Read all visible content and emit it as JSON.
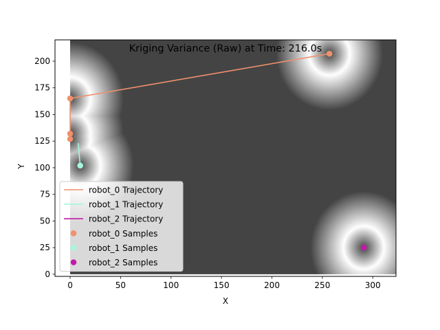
{
  "chart_data": {
    "type": "heatmap",
    "title": "Kriging Variance (Raw) at Time: 216.0s",
    "xlabel": "X",
    "ylabel": "Y",
    "xlim": [
      -15,
      323
    ],
    "ylim": [
      -2,
      220
    ],
    "grid": false,
    "xticks": [
      0,
      50,
      100,
      150,
      200,
      250,
      300
    ],
    "yticks": [
      0,
      25,
      50,
      75,
      100,
      125,
      150,
      175,
      200
    ],
    "heatmap": {
      "extent_x": [
        0,
        323
      ],
      "extent_y": [
        0,
        220
      ],
      "colormap": "gray",
      "background": "#444444",
      "sample_points": [
        {
          "x": 0,
          "y": 165
        },
        {
          "x": 0,
          "y": 132
        },
        {
          "x": 0,
          "y": 127
        },
        {
          "x": 10,
          "y": 102
        },
        {
          "x": 257,
          "y": 207
        },
        {
          "x": 291,
          "y": 25
        }
      ]
    },
    "series": [
      {
        "name": "robot_0 Trajectory",
        "kind": "line",
        "color": "#f0906c",
        "x": [
          0,
          0,
          0,
          0,
          257
        ],
        "y": [
          127,
          132,
          165,
          165,
          207
        ]
      },
      {
        "name": "robot_1 Trajectory",
        "kind": "line",
        "color": "#a8f5e0",
        "x": [
          8,
          10
        ],
        "y": [
          123,
          102
        ]
      },
      {
        "name": "robot_2 Trajectory",
        "kind": "line",
        "color": "#c21aa8",
        "x": [
          291
        ],
        "y": [
          25
        ]
      },
      {
        "name": "robot_0 Samples",
        "kind": "scatter",
        "color": "#f0906c",
        "x": [
          0,
          0,
          0,
          257
        ],
        "y": [
          165,
          132,
          127,
          207
        ]
      },
      {
        "name": "robot_1 Samples",
        "kind": "scatter",
        "color": "#a8f5e0",
        "x": [
          10
        ],
        "y": [
          102
        ]
      },
      {
        "name": "robot_2 Samples",
        "kind": "scatter",
        "color": "#c21aa8",
        "x": [
          291
        ],
        "y": [
          25
        ]
      }
    ],
    "legend": {
      "placement": "lower-left",
      "entries": [
        {
          "name": "robot_0 Trajectory",
          "style": "line",
          "color": "#f0906c"
        },
        {
          "name": "robot_1 Trajectory",
          "style": "line",
          "color": "#a8f5e0"
        },
        {
          "name": "robot_2 Trajectory",
          "style": "line",
          "color": "#c21aa8"
        },
        {
          "name": "robot_0 Samples",
          "style": "marker",
          "color": "#f0906c"
        },
        {
          "name": "robot_1 Samples",
          "style": "marker",
          "color": "#a8f5e0"
        },
        {
          "name": "robot_2 Samples",
          "style": "marker",
          "color": "#c21aa8"
        }
      ]
    }
  }
}
